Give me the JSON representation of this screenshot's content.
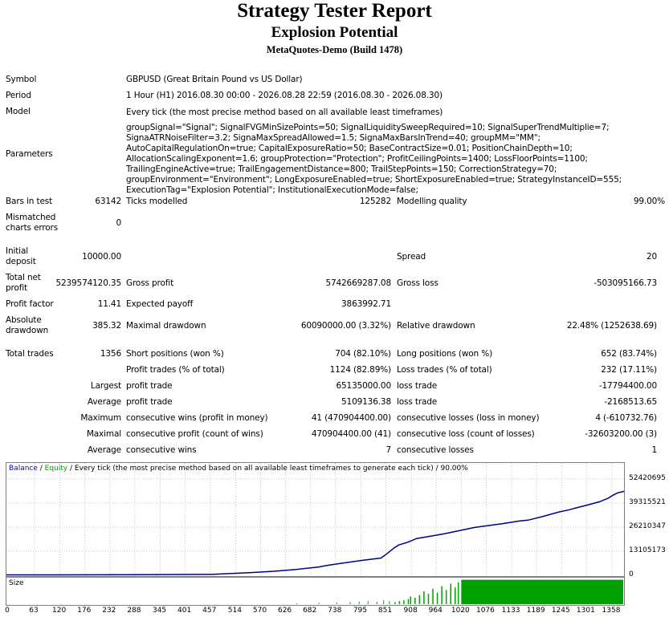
{
  "header": {
    "title": "Strategy Tester Report",
    "ea_name": "Explosion Potential",
    "server": "MetaQuotes-Demo (Build 1478)"
  },
  "summary": {
    "symbol_label": "Symbol",
    "symbol_value": "GBPUSD (Great Britain Pound vs US Dollar)",
    "period_label": "Period",
    "period_value": "1 Hour (H1) 2016.08.30 00:00 - 2026.08.28 22:59 (2016.08.30 - 2026.08.30)",
    "model_label": "Model",
    "model_value": "Every tick (the most precise method based on all available least timeframes)",
    "parameters_label": "Parameters",
    "parameters_value": "groupSignal=\"Signal\"; SignalFVGMinSizePoints=50; SignalLiquiditySweepRequired=10; SignalSuperTrendMultiplie=7; SignaATRNoiseFilter=3.2; SignaMaxSpreadAllowed=1.5; SignaMaxBarsInTrend=40; groupMM=\"MM\"; AutoCapitalRegulationOn=true; CapitalExposureRatio=50; BaseContractSize=0.01; PositionChainDepth=10; AllocationScalingExponent=1.6; groupProtection=\"Protection\"; ProfitCeilingPoints=1400; LossFloorPoints=1100; TrailingEngineActive=true; TrailEngagementDistance=800; TrailStepPoints=150; CorrectionStrategy=70; groupEnvironment=\"Environment\"; LongExposureEnabled=true; ShortExposureEnabled=true; StrategyInstanceID=555; ExecutionTag=\"Explosion Potential\"; InstitutionalExecutionMode=false;"
  },
  "stats": {
    "bars_label": "Bars in test",
    "bars_value": "63142",
    "ticks_label": "Ticks modelled",
    "ticks_value": "125282",
    "quality_label": "Modelling quality",
    "quality_value": "99.00%",
    "mismatch_label_1": "Mismatched",
    "mismatch_label_2": "charts errors",
    "mismatch_value": "0",
    "deposit_label_1": "Initial",
    "deposit_label_2": "deposit",
    "deposit_value": "10000.00",
    "spread_label": "Spread",
    "spread_value": "20",
    "net_label_1": "Total net",
    "net_label_2": "profit",
    "net_value": "5239574120.35",
    "gross_profit_label": "Gross profit",
    "gross_profit_value": "5742669287.08",
    "gross_loss_label": "Gross loss",
    "gross_loss_value": "-503095166.73",
    "pf_label": "Profit factor",
    "pf_value": "11.41",
    "payoff_label": "Expected payoff",
    "payoff_value": "3863992.71",
    "abs_dd_label_1": "Absolute",
    "abs_dd_label_2": "drawdown",
    "abs_dd_value": "385.32",
    "max_dd_label": "Maximal drawdown",
    "max_dd_value": "60090000.00 (3.32%)",
    "rel_dd_label": "Relative drawdown",
    "rel_dd_value": "22.48% (1252638.69)",
    "total_trades_label": "Total trades",
    "total_trades_value": "1356",
    "short_label": "Short positions (won %)",
    "short_value": "704 (82.10%)",
    "long_label": "Long positions (won %)",
    "long_value": "652 (83.74%)",
    "profit_trades_label": "Profit trades (% of total)",
    "profit_trades_value": "1124 (82.89%)",
    "loss_trades_label": "Loss trades (% of total)",
    "loss_trades_value": "232 (17.11%)",
    "largest_label": "Largest",
    "largest_profit_label": "profit trade",
    "largest_profit_value": "65135000.00",
    "largest_loss_label": "loss trade",
    "largest_loss_value": "-17794400.00",
    "average_label": "Average",
    "average_profit_label": "profit trade",
    "average_profit_value": "5109136.38",
    "average_loss_label": "loss trade",
    "average_loss_value": "-2168513.65",
    "maximum_label": "Maximum",
    "max_cons_wins_label": "consecutive wins (profit in money)",
    "max_cons_wins_value": "41 (470904400.00)",
    "max_cons_losses_label": "consecutive losses (loss in money)",
    "max_cons_losses_value": "4 (-610732.76)",
    "maximal_label": "Maximal",
    "maximal_cons_profit_label": "consecutive profit (count of wins)",
    "maximal_cons_profit_value": "470904400.00 (41)",
    "maximal_cons_loss_label": "consecutive loss (count of losses)",
    "maximal_cons_loss_value": "-32603200.00 (3)",
    "average2_label": "Average",
    "avg_cons_wins_label": "consecutive wins",
    "avg_cons_wins_value": "7",
    "avg_cons_losses_label": "consecutive losses",
    "avg_cons_losses_value": "1"
  },
  "chart_caption": {
    "balance": "Balance",
    "sep1": " / ",
    "equity": "Equity",
    "rest": " / Every tick (the most precise method based on all available least timeframes to generate each tick) / 90.00%"
  },
  "size_label": "Size",
  "chart_data": {
    "type": "line",
    "series": [
      {
        "name": "Balance",
        "color": "#00008b"
      },
      {
        "name": "Equity",
        "color": "#00a000"
      }
    ],
    "y_ticks": [
      "52420695",
      "39315521",
      "26210347",
      "13105173",
      "0"
    ],
    "y_tick_values": [
      52420695,
      39315521,
      26210347,
      13105173,
      0
    ],
    "x_ticks": [
      "0",
      "63",
      "120",
      "176",
      "232",
      "288",
      "345",
      "401",
      "457",
      "514",
      "570",
      "626",
      "682",
      "738",
      "795",
      "851",
      "908",
      "964",
      "1020",
      "1076",
      "1133",
      "1189",
      "1245",
      "1301",
      "1358"
    ],
    "ylim": [
      0,
      55000000
    ],
    "xlim": [
      0,
      1385
    ],
    "balance_curve": [
      [
        0,
        200000
      ],
      [
        100,
        220000
      ],
      [
        200,
        260000
      ],
      [
        300,
        330000
      ],
      [
        400,
        420000
      ],
      [
        460,
        500000
      ],
      [
        500,
        900000
      ],
      [
        550,
        1500000
      ],
      [
        600,
        2200000
      ],
      [
        650,
        3200000
      ],
      [
        700,
        4500000
      ],
      [
        720,
        5400000
      ],
      [
        760,
        6800000
      ],
      [
        800,
        8200000
      ],
      [
        840,
        9400000
      ],
      [
        852,
        11500000
      ],
      [
        870,
        15000000
      ],
      [
        880,
        16500000
      ],
      [
        900,
        18000000
      ],
      [
        920,
        20000000
      ],
      [
        950,
        21200000
      ],
      [
        980,
        22500000
      ],
      [
        1020,
        24500000
      ],
      [
        1050,
        26000000
      ],
      [
        1080,
        27000000
      ],
      [
        1110,
        28000000
      ],
      [
        1150,
        29500000
      ],
      [
        1170,
        30000000
      ],
      [
        1200,
        31800000
      ],
      [
        1240,
        34500000
      ],
      [
        1260,
        35500000
      ],
      [
        1275,
        36500000
      ],
      [
        1300,
        38000000
      ],
      [
        1330,
        40000000
      ],
      [
        1350,
        42000000
      ],
      [
        1360,
        43500000
      ],
      [
        1370,
        44800000
      ],
      [
        1385,
        45700000
      ]
    ],
    "size_bars_start": 1020,
    "size_bars_full_level": 0.95,
    "size_sparse": [
      [
        870,
        0.08
      ],
      [
        880,
        0.12
      ],
      [
        890,
        0.15
      ],
      [
        900,
        0.2
      ],
      [
        905,
        0.3
      ],
      [
        915,
        0.25
      ],
      [
        925,
        0.35
      ],
      [
        935,
        0.5
      ],
      [
        945,
        0.4
      ],
      [
        955,
        0.6
      ],
      [
        965,
        0.45
      ],
      [
        975,
        0.7
      ],
      [
        985,
        0.55
      ],
      [
        995,
        0.8
      ],
      [
        1005,
        0.65
      ],
      [
        1012,
        0.85
      ]
    ],
    "size_tiny": [
      [
        650,
        0.03
      ],
      [
        700,
        0.05
      ],
      [
        740,
        0.06
      ],
      [
        770,
        0.08
      ],
      [
        790,
        0.1
      ],
      [
        810,
        0.12
      ],
      [
        830,
        0.1
      ],
      [
        845,
        0.15
      ],
      [
        858,
        0.12
      ]
    ]
  }
}
